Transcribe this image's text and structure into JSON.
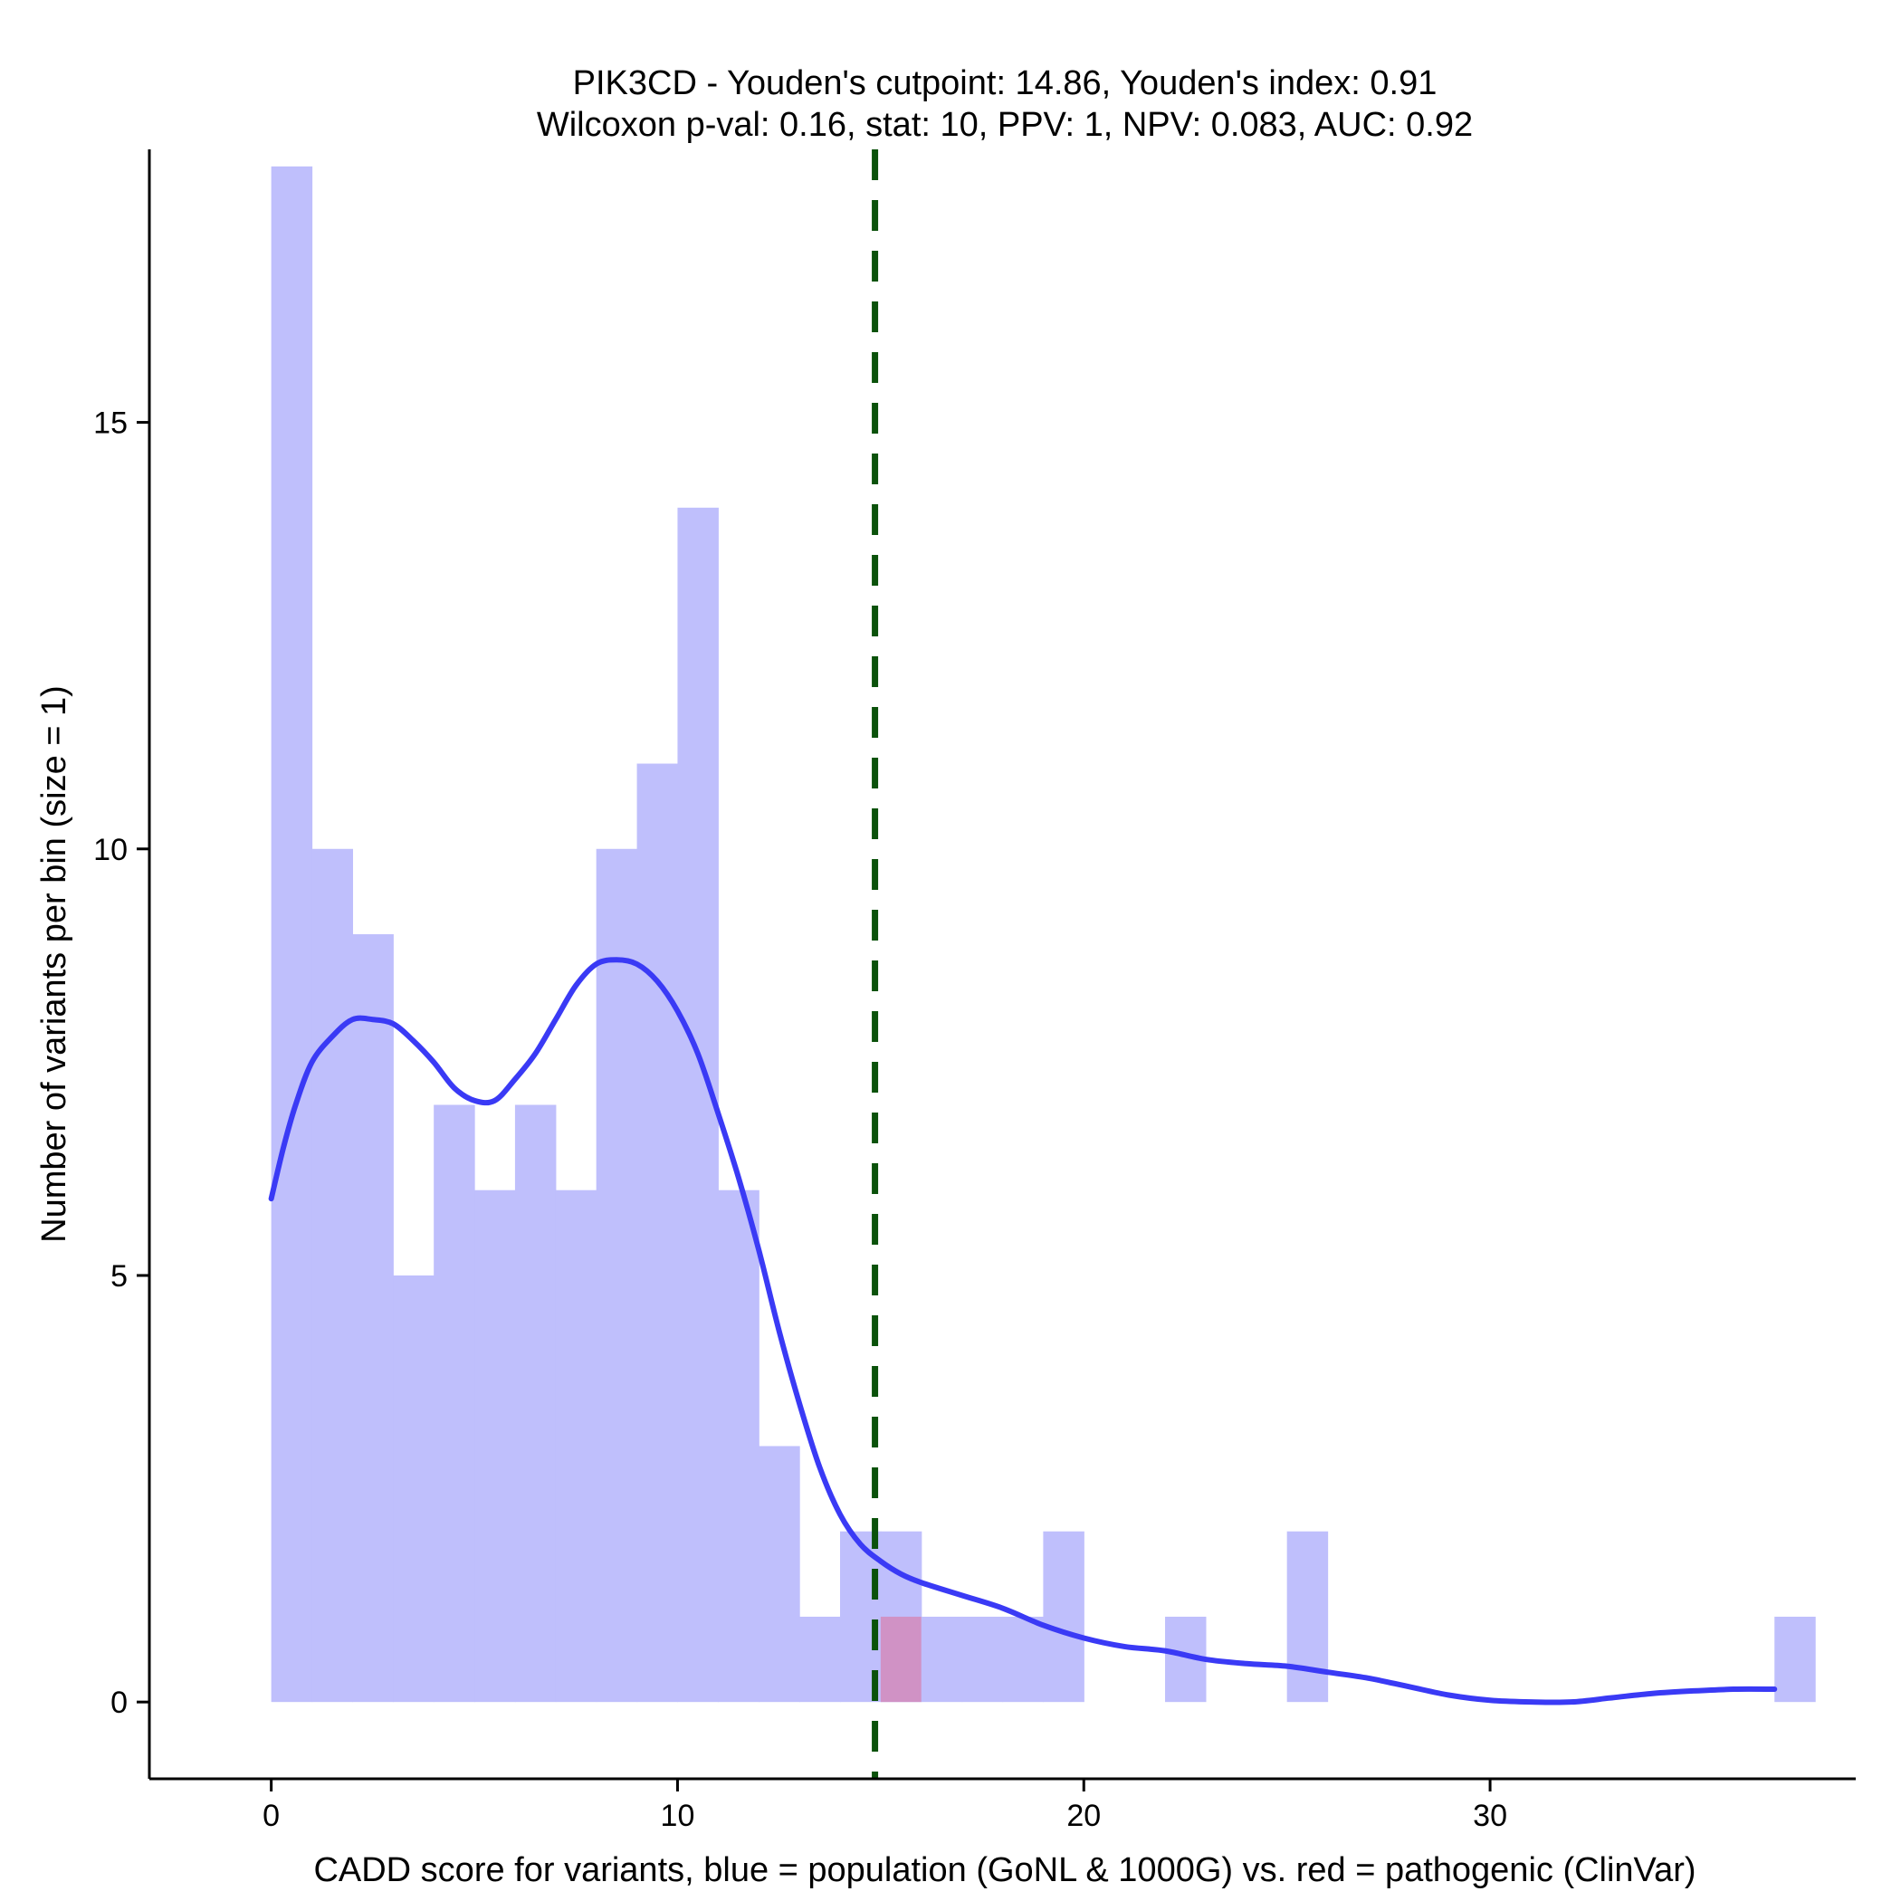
{
  "chart_data": {
    "type": "histogram",
    "title_line1": "PIK3CD - Youden's cutpoint: 14.86, Youden's index: 0.91",
    "title_line2": "Wilcoxon p-val: 0.16, stat: 10, PPV: 1, NPV: 0.083, AUC: 0.92",
    "xlabel": "CADD score for variants, blue = population (GoNL & 1000G) vs. red = pathogenic (ClinVar)",
    "ylabel": "Number of variants per bin (size = 1)",
    "xlim": [
      -3,
      39
    ],
    "ylim": [
      -0.9,
      18.2
    ],
    "x_ticks": [
      0,
      10,
      20,
      30
    ],
    "y_ticks": [
      0,
      5,
      10,
      15
    ],
    "bin_size": 1,
    "grid": false,
    "cutpoint": 14.86,
    "colors": {
      "population": "#bfbffc",
      "pathogenic": "#d092c5",
      "density": "#3a3af5",
      "cutpoint": "#0b520b"
    },
    "population_bins": [
      {
        "start": 0,
        "count": 18
      },
      {
        "start": 1,
        "count": 10
      },
      {
        "start": 2,
        "count": 9
      },
      {
        "start": 3,
        "count": 5
      },
      {
        "start": 4,
        "count": 7
      },
      {
        "start": 5,
        "count": 6
      },
      {
        "start": 6,
        "count": 7
      },
      {
        "start": 7,
        "count": 6
      },
      {
        "start": 8,
        "count": 10
      },
      {
        "start": 9,
        "count": 11
      },
      {
        "start": 10,
        "count": 14
      },
      {
        "start": 11,
        "count": 6
      },
      {
        "start": 12,
        "count": 3
      },
      {
        "start": 13,
        "count": 1
      },
      {
        "start": 14,
        "count": 2
      },
      {
        "start": 15,
        "count": 2
      },
      {
        "start": 16,
        "count": 1
      },
      {
        "start": 17,
        "count": 1
      },
      {
        "start": 18,
        "count": 1
      },
      {
        "start": 19,
        "count": 2
      },
      {
        "start": 22,
        "count": 1
      },
      {
        "start": 25,
        "count": 2
      },
      {
        "start": 37,
        "count": 1
      }
    ],
    "pathogenic_bins": [
      {
        "start": 15,
        "count": 1
      }
    ],
    "density_curve": [
      [
        0.0,
        5.9
      ],
      [
        0.3,
        6.5
      ],
      [
        0.6,
        7.0
      ],
      [
        1.0,
        7.5
      ],
      [
        1.5,
        7.8
      ],
      [
        2.0,
        8.0
      ],
      [
        2.5,
        8.0
      ],
      [
        3.0,
        7.95
      ],
      [
        3.5,
        7.75
      ],
      [
        4.0,
        7.5
      ],
      [
        4.5,
        7.2
      ],
      [
        5.0,
        7.05
      ],
      [
        5.5,
        7.05
      ],
      [
        6.0,
        7.3
      ],
      [
        6.5,
        7.6
      ],
      [
        7.0,
        8.0
      ],
      [
        7.5,
        8.4
      ],
      [
        8.0,
        8.65
      ],
      [
        8.5,
        8.7
      ],
      [
        9.0,
        8.65
      ],
      [
        9.5,
        8.45
      ],
      [
        10.0,
        8.1
      ],
      [
        10.5,
        7.6
      ],
      [
        11.0,
        6.9
      ],
      [
        11.5,
        6.15
      ],
      [
        12.0,
        5.3
      ],
      [
        12.5,
        4.35
      ],
      [
        13.0,
        3.5
      ],
      [
        13.5,
        2.75
      ],
      [
        14.0,
        2.2
      ],
      [
        14.5,
        1.85
      ],
      [
        15.0,
        1.65
      ],
      [
        15.5,
        1.5
      ],
      [
        16.0,
        1.4
      ],
      [
        17.0,
        1.25
      ],
      [
        18.0,
        1.1
      ],
      [
        19.0,
        0.9
      ],
      [
        20.0,
        0.75
      ],
      [
        21.0,
        0.65
      ],
      [
        22.0,
        0.6
      ],
      [
        23.0,
        0.5
      ],
      [
        24.0,
        0.45
      ],
      [
        25.0,
        0.42
      ],
      [
        26.0,
        0.35
      ],
      [
        27.0,
        0.28
      ],
      [
        28.0,
        0.18
      ],
      [
        29.0,
        0.08
      ],
      [
        30.0,
        0.02
      ],
      [
        31.0,
        0.0
      ],
      [
        32.0,
        0.0
      ],
      [
        33.0,
        0.05
      ],
      [
        34.0,
        0.1
      ],
      [
        35.0,
        0.13
      ],
      [
        36.0,
        0.15
      ],
      [
        37.0,
        0.15
      ]
    ]
  }
}
